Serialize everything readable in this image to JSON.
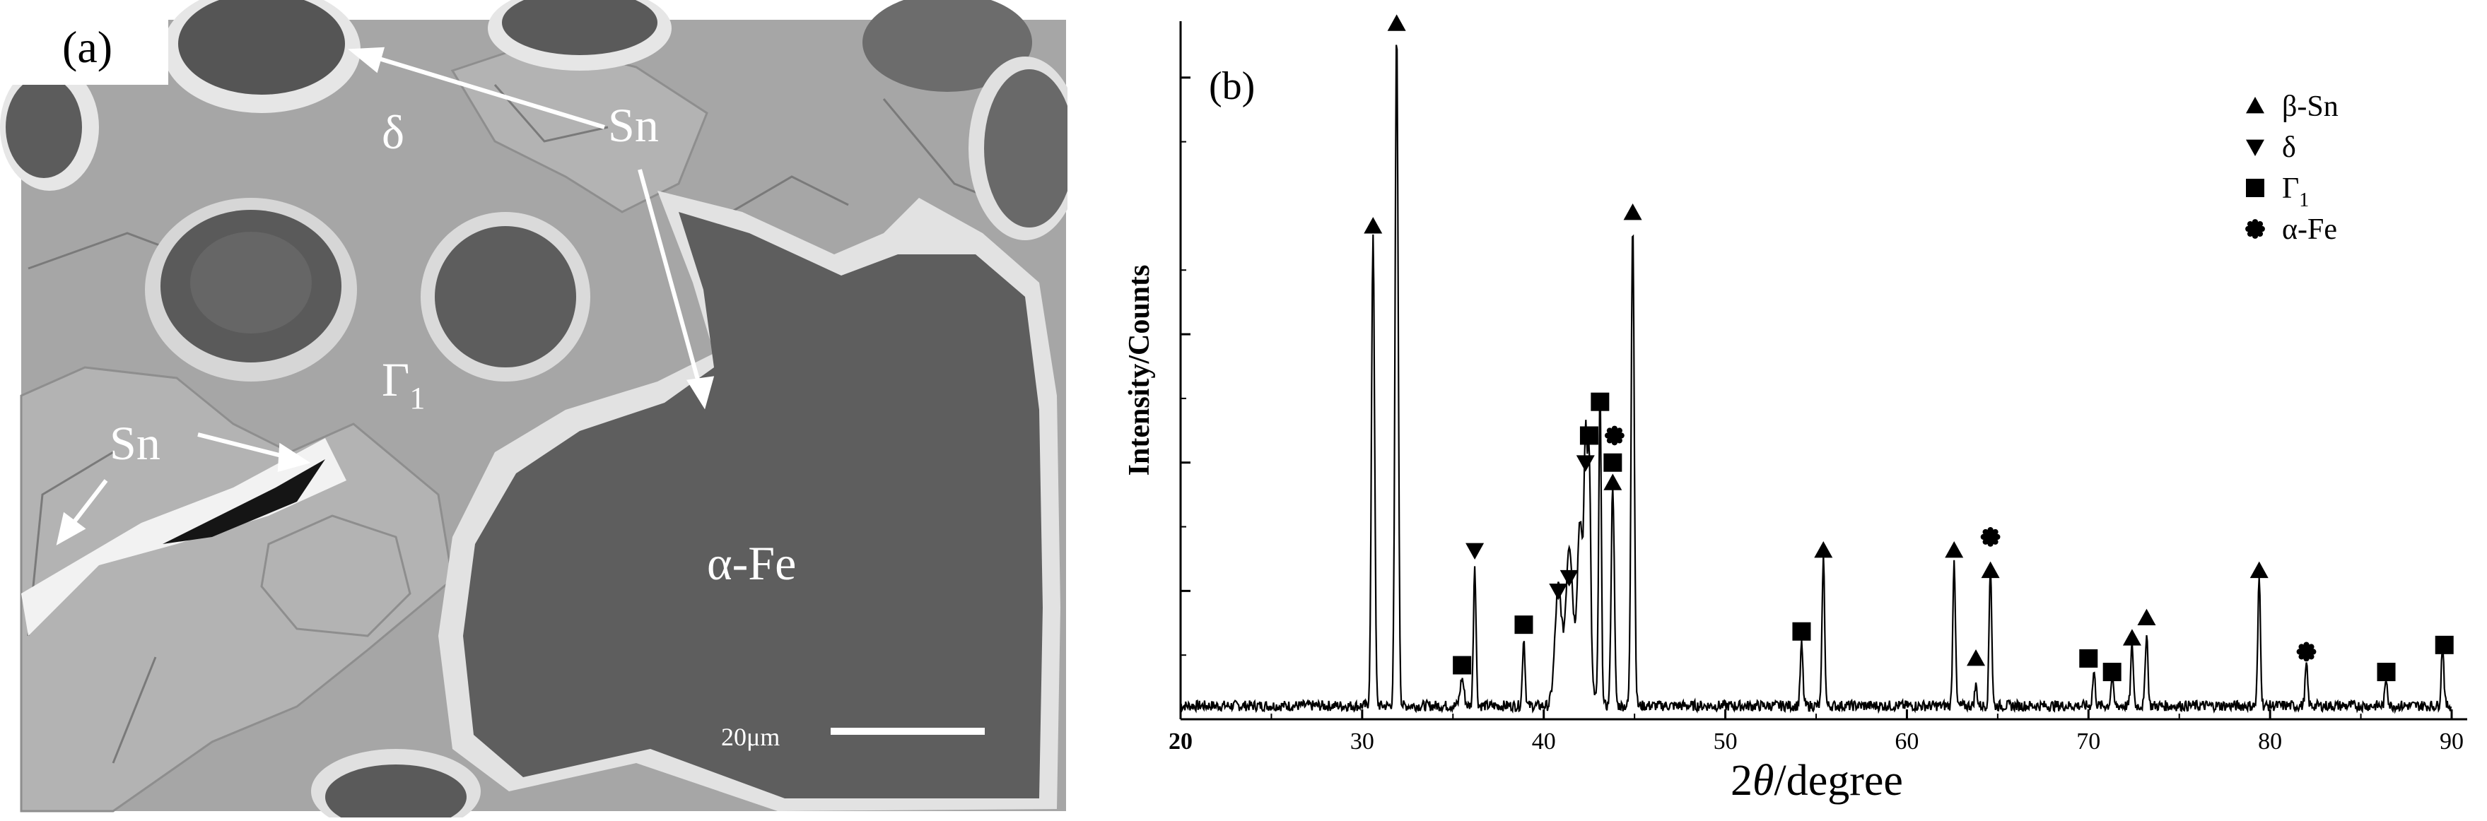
{
  "panel_a": {
    "panel_label": "(a)",
    "labels": {
      "delta": "δ",
      "sn_top": "Sn",
      "gamma": "Γ",
      "gamma_sub": "1",
      "sn_left": "Sn",
      "alpha_fe": "α-Fe"
    },
    "scale_bar": {
      "text": "20μm"
    }
  },
  "chart_data": {
    "type": "line",
    "panel_label": "(b)",
    "xlabel_prefix": "2",
    "xlabel_theta": "θ",
    "xlabel_suffix": "/degree",
    "ylabel": "Intensity/Counts",
    "xlim": [
      20,
      90
    ],
    "ylim": [
      0,
      100
    ],
    "x_ticks": [
      20,
      30,
      40,
      50,
      60,
      70,
      80,
      90
    ],
    "y_ticks": [
      19,
      38,
      57,
      95
    ],
    "peaks": [
      {
        "x": 30.6,
        "y": 70,
        "w": 0.12
      },
      {
        "x": 31.9,
        "y": 100,
        "w": 0.12
      },
      {
        "x": 35.5,
        "y": 4,
        "w": 0.15
      },
      {
        "x": 36.2,
        "y": 21,
        "w": 0.1
      },
      {
        "x": 38.9,
        "y": 10,
        "w": 0.1
      },
      {
        "x": 40.8,
        "y": 16,
        "w": 0.25
      },
      {
        "x": 41.4,
        "y": 19,
        "w": 0.25
      },
      {
        "x": 42.0,
        "y": 22,
        "w": 0.2
      },
      {
        "x": 42.3,
        "y": 33,
        "w": 0.12
      },
      {
        "x": 42.5,
        "y": 34,
        "w": 0.12
      },
      {
        "x": 43.1,
        "y": 45,
        "w": 0.1
      },
      {
        "x": 43.8,
        "y": 33,
        "w": 0.12
      },
      {
        "x": 44.9,
        "y": 72,
        "w": 0.12
      },
      {
        "x": 54.2,
        "y": 9,
        "w": 0.1
      },
      {
        "x": 55.4,
        "y": 22,
        "w": 0.1
      },
      {
        "x": 62.6,
        "y": 22,
        "w": 0.1
      },
      {
        "x": 63.8,
        "y": 3,
        "w": 0.1
      },
      {
        "x": 64.6,
        "y": 21,
        "w": 0.1
      },
      {
        "x": 70.3,
        "y": 5,
        "w": 0.1
      },
      {
        "x": 71.3,
        "y": 4,
        "w": 0.1
      },
      {
        "x": 72.4,
        "y": 9,
        "w": 0.1
      },
      {
        "x": 73.2,
        "y": 11,
        "w": 0.1
      },
      {
        "x": 79.4,
        "y": 19,
        "w": 0.1
      },
      {
        "x": 82.0,
        "y": 6,
        "w": 0.1
      },
      {
        "x": 86.4,
        "y": 4,
        "w": 0.1
      },
      {
        "x": 89.5,
        "y": 9,
        "w": 0.1
      }
    ],
    "markers": [
      {
        "phase": "beta-Sn",
        "x": 30.6,
        "y": 73
      },
      {
        "phase": "beta-Sn",
        "x": 31.9,
        "y": 103
      },
      {
        "phase": "beta-Sn",
        "x": 44.9,
        "y": 75
      },
      {
        "phase": "beta-Sn",
        "x": 43.8,
        "y": 35
      },
      {
        "phase": "beta-Sn",
        "x": 55.4,
        "y": 25
      },
      {
        "phase": "beta-Sn",
        "x": 62.6,
        "y": 25
      },
      {
        "phase": "beta-Sn",
        "x": 63.8,
        "y": 9
      },
      {
        "phase": "beta-Sn",
        "x": 64.6,
        "y": 22
      },
      {
        "phase": "beta-Sn",
        "x": 72.4,
        "y": 12
      },
      {
        "phase": "beta-Sn",
        "x": 73.2,
        "y": 15
      },
      {
        "phase": "beta-Sn",
        "x": 79.4,
        "y": 22
      },
      {
        "phase": "delta",
        "x": 36.2,
        "y": 25
      },
      {
        "phase": "delta",
        "x": 40.8,
        "y": 19
      },
      {
        "phase": "delta",
        "x": 41.4,
        "y": 21
      },
      {
        "phase": "delta",
        "x": 42.3,
        "y": 38
      },
      {
        "phase": "gamma1",
        "x": 35.5,
        "y": 8
      },
      {
        "phase": "gamma1",
        "x": 38.9,
        "y": 14
      },
      {
        "phase": "gamma1",
        "x": 42.5,
        "y": 42
      },
      {
        "phase": "gamma1",
        "x": 43.1,
        "y": 47
      },
      {
        "phase": "gamma1",
        "x": 43.8,
        "y": 38
      },
      {
        "phase": "gamma1",
        "x": 54.2,
        "y": 13
      },
      {
        "phase": "gamma1",
        "x": 70.0,
        "y": 9
      },
      {
        "phase": "gamma1",
        "x": 71.3,
        "y": 7
      },
      {
        "phase": "gamma1",
        "x": 86.4,
        "y": 7
      },
      {
        "phase": "gamma1",
        "x": 89.6,
        "y": 11
      },
      {
        "phase": "alpha-Fe",
        "x": 43.9,
        "y": 42
      },
      {
        "phase": "alpha-Fe",
        "x": 64.6,
        "y": 27
      },
      {
        "phase": "alpha-Fe",
        "x": 82.0,
        "y": 10
      }
    ],
    "legend": [
      {
        "phase": "beta-Sn",
        "shape": "triangle-up",
        "label": "β-Sn"
      },
      {
        "phase": "delta",
        "shape": "triangle-down",
        "label": "δ"
      },
      {
        "phase": "gamma1",
        "shape": "square",
        "label": "Γ",
        "subscript": "1"
      },
      {
        "phase": "alpha-Fe",
        "shape": "star",
        "label": "α-Fe"
      }
    ],
    "legend_placement": "top-right",
    "grid": false,
    "colors": {
      "line": "#000000",
      "marker": "#000000"
    }
  }
}
